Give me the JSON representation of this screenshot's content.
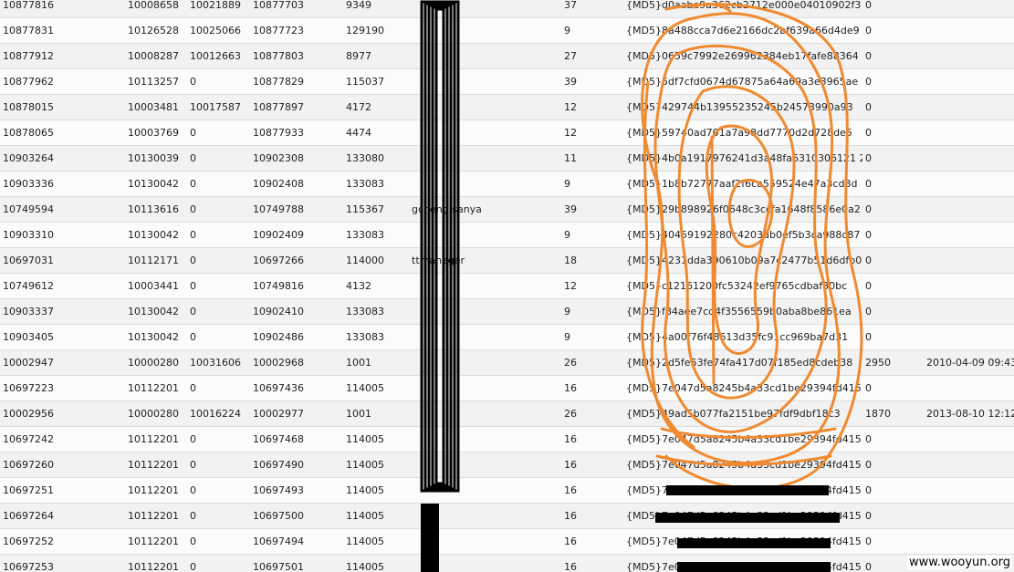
{
  "rows": [
    [
      "10877816",
      "10008658",
      "10021889",
      "10877703",
      "9349",
      "",
      "37",
      "{MD5}d0aabe9a362cb2712e000e04010902f3",
      "0",
      "",
      ""
    ],
    [
      "10877831",
      "10126528",
      "10025066",
      "10877723",
      "129190",
      "",
      "9",
      "{MD5}8a488cca7d6e2166dc2bf639a66d4de9",
      "0",
      "",
      ""
    ],
    [
      "10877912",
      "10008287",
      "10012663",
      "10877803",
      "8977",
      "",
      "27",
      "{MD5}0659c7992e269962384eb17fafe88364",
      "0",
      "",
      ""
    ],
    [
      "10877962",
      "10113257",
      "0",
      "10877829",
      "115037",
      "",
      "39",
      "{MD5}5df7cfd0674d67875a64a69a3e3965ae",
      "0",
      "",
      ""
    ],
    [
      "10878015",
      "10003481",
      "10017587",
      "10877897",
      "4172",
      "",
      "12",
      "{MD5}429744b13955235245b24573990a93",
      "0",
      "",
      ""
    ],
    [
      "10878065",
      "10003769",
      "0",
      "10877933",
      "4474",
      "",
      "12",
      "{MD5}59740ad701a7a98dd7770d2d728de5",
      "0",
      "",
      ""
    ],
    [
      "10903264",
      "10130039",
      "0",
      "10902308",
      "133080",
      "",
      "11",
      "{MD5}4b0a1917976241d3a48fa6310306121 2",
      "0",
      "",
      ""
    ],
    [
      "10903336",
      "10130042",
      "0",
      "10902408",
      "133083",
      "",
      "9",
      "{MD5}1b8b72777aaf2f6ca559524e47a3cd3d",
      "0",
      "",
      ""
    ],
    [
      "10749594",
      "10113616",
      "0",
      "10749788",
      "115367",
      "gcheng.sanya",
      "39",
      "{MD5}29b898926f0648c3ccfa1648f8586e0a2",
      "0",
      "",
      ""
    ],
    [
      "10903310",
      "10130042",
      "0",
      "10902409",
      "133083",
      "",
      "9",
      "{MD5}40459192280c4203db0ef5b3ca988c87",
      "0",
      "",
      ""
    ],
    [
      "10697031",
      "10112171",
      "0",
      "10697266",
      "114000",
      "ttmanager",
      "18",
      "{MD5}4231dda390610b09a7c2477b51d6dfb0",
      "0",
      "",
      ""
    ],
    [
      "10749612",
      "10003441",
      "0",
      "10749816",
      "4132",
      "",
      "12",
      "{MD5}c12161200fc53242ef9765cdbaf30bc",
      "0",
      "",
      ""
    ],
    [
      "10903337",
      "10130042",
      "0",
      "10902410",
      "133083",
      "",
      "9",
      "{MD5}f84aee7cd4f3556559b0aba8be861ea",
      "0",
      "",
      ""
    ],
    [
      "10903405",
      "10130042",
      "0",
      "10902486",
      "133083",
      "",
      "9",
      "{MD5}4a00f76f48613d35fc91cc969ba7d31",
      "0",
      "",
      ""
    ],
    [
      "10002947",
      "10000280",
      "10031606",
      "10002968",
      "1001",
      "",
      "26",
      "{MD5}2d5fe53fe74fa417d07f185ed8cdeb38",
      "2950",
      "2010-04-09 09:43",
      ""
    ],
    [
      "10697223",
      "10112201",
      "0",
      "10697436",
      "114005",
      "",
      "16",
      "{MD5}7e047d5a8245b4a33cd1be29394fd415",
      "0",
      "",
      ""
    ],
    [
      "10002956",
      "10000280",
      "10016224",
      "10002977",
      "1001",
      "",
      "26",
      "{MD5}49ad5b077fa2151be97fdf9dbf18c3",
      "1870",
      "2013-08-10 12:12",
      ""
    ],
    [
      "10697242",
      "10112201",
      "0",
      "10697468",
      "114005",
      "",
      "16",
      "{MD5}7e047d5a8245b4a33cd1be29394fd415",
      "0",
      "",
      ""
    ],
    [
      "10697260",
      "10112201",
      "0",
      "10697490",
      "114005",
      "",
      "16",
      "{MD5}7e047d5a8245b4a33cd1be29394fd415",
      "0",
      "",
      ""
    ],
    [
      "10697251",
      "10112201",
      "0",
      "10697493",
      "114005",
      "",
      "16",
      "{MD5}7e047d5a8245b4a33cd1be29394fd415",
      "0",
      "",
      ""
    ],
    [
      "10697264",
      "10112201",
      "0",
      "10697500",
      "114005",
      "",
      "16",
      "{MD5}7e047d5a8245b4a33cd1be29394fd415",
      "0",
      "",
      ""
    ],
    [
      "10697252",
      "10112201",
      "0",
      "10697494",
      "114005",
      "",
      "16",
      "{MD5}7e047d5a8245b4a33cd1be29394fd415",
      "0",
      "",
      ""
    ],
    [
      "10697253",
      "10112201",
      "0",
      "10697501",
      "114005",
      "",
      "16",
      "{MD5}7e047d5a8245b4a33cd1be29394fd415",
      "0",
      "",
      ""
    ]
  ],
  "watermark": "www.wooyun.org",
  "colors": {
    "scribble": "#f08a30",
    "redaction": "#000000"
  }
}
